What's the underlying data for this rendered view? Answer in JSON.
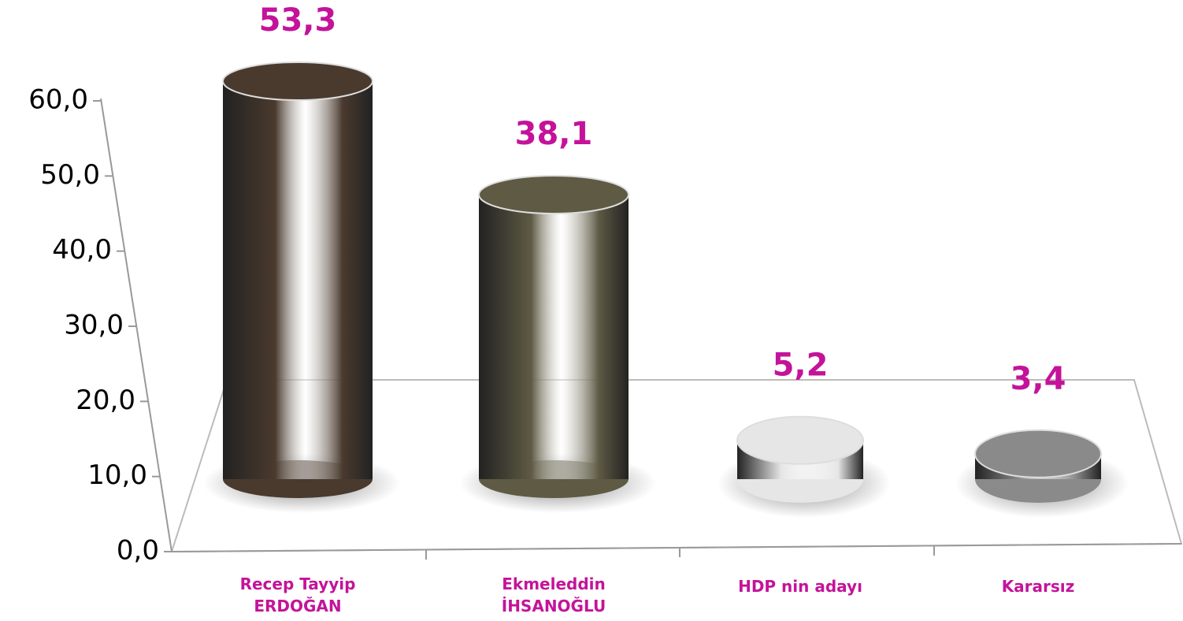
{
  "chart_data": {
    "type": "bar",
    "categories": [
      "Recep Tayyip ERDOĞAN",
      "Ekmeleddin İHSANOĞLU",
      "HDP nin adayı",
      "Kararsız"
    ],
    "values": [
      53.3,
      38.1,
      5.2,
      3.4
    ],
    "value_labels": [
      "53,3",
      "38,1",
      "5,2",
      "3,4"
    ],
    "colors": [
      "#4a3a2e",
      "#5e5a44",
      "#e6e6e6",
      "#8a8a8a"
    ],
    "label_color": "#c4139a",
    "ylim": [
      0,
      60
    ],
    "yticks": [
      {
        "value": 0,
        "label": "0,0"
      },
      {
        "value": 10,
        "label": "10,0"
      },
      {
        "value": 20,
        "label": "20,0"
      },
      {
        "value": 30,
        "label": "30,0"
      },
      {
        "value": 40,
        "label": "40,0"
      },
      {
        "value": 50,
        "label": "50,0"
      },
      {
        "value": 60,
        "label": "60,0"
      }
    ],
    "grid": false
  }
}
